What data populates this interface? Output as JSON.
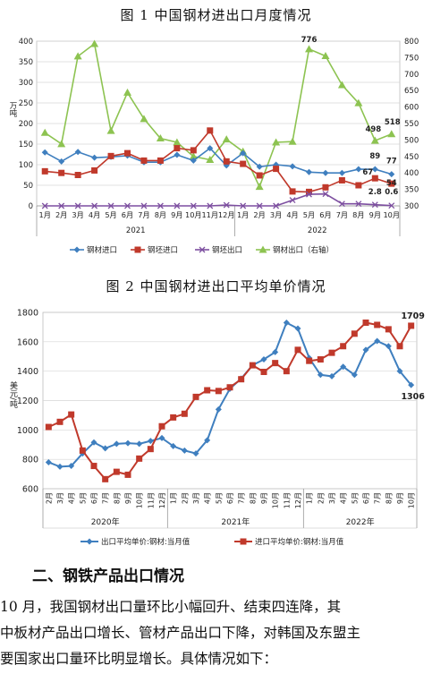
{
  "figure1": {
    "title": "图 1  中国钢材进出口月度情况",
    "y_left_unit": "万吨",
    "y_left_ticks": [
      "0",
      "50",
      "100",
      "150",
      "200",
      "250",
      "300",
      "350",
      "400"
    ],
    "y_right_ticks": [
      "300",
      "350",
      "400",
      "450",
      "500",
      "550",
      "600",
      "650",
      "700",
      "750",
      "800"
    ],
    "months": [
      "1月",
      "2月",
      "3月",
      "4月",
      "5月",
      "6月",
      "7月",
      "8月",
      "9月",
      "10月",
      "11月",
      "12月",
      "1月",
      "2月",
      "3月",
      "4月",
      "5月",
      "6月",
      "7月",
      "8月",
      "9月",
      "10月"
    ],
    "year_labels": [
      "2021",
      "2022"
    ],
    "legend": [
      "钢材进口",
      "钢坯进口",
      "钢坯出口",
      "钢材出口（右轴）"
    ],
    "annotations": {
      "steel_export_peak": "776",
      "steel_export_sep": "498",
      "steel_export_oct": "518",
      "steel_import_sep": "89",
      "steel_import_oct": "77",
      "billet_import_sep": "67",
      "billet_import_oct": "54",
      "billet_export_sep": "2.8",
      "billet_export_oct": "0.6"
    }
  },
  "figure2": {
    "title": "图 2  中国钢材进出口平均单价情况",
    "y_unit": "美元/吨",
    "y_ticks": [
      "600",
      "800",
      "1000",
      "1200",
      "1400",
      "1600",
      "1800"
    ],
    "months": [
      "2月",
      "3月",
      "4月",
      "5月",
      "6月",
      "7月",
      "8月",
      "9月",
      "10月",
      "11月",
      "12月",
      "1月",
      "2月",
      "3月",
      "4月",
      "5月",
      "6月",
      "7月",
      "8月",
      "9月",
      "10月",
      "11月",
      "12月",
      "1月",
      "2月",
      "3月",
      "4月",
      "5月",
      "6月",
      "7月",
      "8月",
      "9月",
      "10月"
    ],
    "year_labels": [
      "2020年",
      "2021年",
      "2022年"
    ],
    "legend": [
      "出口平均单价:钢材:当月值",
      "进口平均单价:钢材:当月值"
    ],
    "annotations": {
      "import_last": "1709",
      "export_last": "1306"
    }
  },
  "chart_data": [
    {
      "type": "line",
      "title": "图 1  中国钢材进出口月度情况",
      "ylabel": "万吨",
      "ylim": [
        0,
        400
      ],
      "y2lim": [
        300,
        800
      ],
      "categories": [
        "1月",
        "2月",
        "3月",
        "4月",
        "5月",
        "6月",
        "7月",
        "8月",
        "9月",
        "10月",
        "11月",
        "12月",
        "1月",
        "2月",
        "3月",
        "4月",
        "5月",
        "6月",
        "7月",
        "8月",
        "9月",
        "10月"
      ],
      "series": [
        {
          "name": "钢材进口",
          "axis": "left",
          "color": "#3f7fbf",
          "marker": "diamond",
          "values": [
            130,
            108,
            131,
            117,
            119,
            122,
            106,
            106,
            124,
            110,
            140,
            98,
            128,
            95,
            100,
            96,
            82,
            80,
            80,
            89,
            89,
            77
          ]
        },
        {
          "name": "钢坯进口",
          "axis": "left",
          "color": "#c0392b",
          "marker": "square",
          "values": [
            84,
            80,
            75,
            86,
            121,
            128,
            110,
            110,
            140,
            135,
            183,
            108,
            102,
            74,
            90,
            35,
            34,
            45,
            62,
            50,
            67,
            54
          ]
        },
        {
          "name": "钢坯出口",
          "axis": "left",
          "color": "#7d4fa0",
          "marker": "x",
          "values": [
            0,
            0,
            0,
            0,
            0,
            0,
            0,
            0,
            0,
            0,
            0,
            2,
            0,
            0,
            0,
            14,
            28,
            29,
            5,
            5,
            2.8,
            0.6
          ]
        },
        {
          "name": "钢材出口（右轴）",
          "axis": "right",
          "color": "#8dc351",
          "marker": "triangle",
          "values": [
            522,
            488,
            754,
            792,
            528,
            644,
            564,
            505,
            493,
            450,
            440,
            502,
            465,
            358,
            493,
            495,
            776,
            755,
            667,
            612,
            498,
            518
          ]
        }
      ]
    },
    {
      "type": "line",
      "title": "图 2  中国钢材进出口平均单价情况",
      "ylabel": "美元/吨",
      "ylim": [
        600,
        1800
      ],
      "categories": [
        "2月",
        "3月",
        "4月",
        "5月",
        "6月",
        "7月",
        "8月",
        "9月",
        "10月",
        "11月",
        "12月",
        "1月",
        "2月",
        "3月",
        "4月",
        "5月",
        "6月",
        "7月",
        "8月",
        "9月",
        "10月",
        "11月",
        "12月",
        "1月",
        "2月",
        "3月",
        "4月",
        "5月",
        "6月",
        "7月",
        "8月",
        "9月",
        "10月"
      ],
      "series": [
        {
          "name": "出口平均单价:钢材:当月值",
          "color": "#3f7fbf",
          "marker": "diamond",
          "values": [
            780,
            750,
            755,
            840,
            915,
            875,
            905,
            910,
            905,
            925,
            945,
            890,
            860,
            840,
            930,
            1140,
            1280,
            1350,
            1440,
            1480,
            1530,
            1730,
            1690,
            1490,
            1375,
            1365,
            1430,
            1375,
            1545,
            1605,
            1570,
            1400,
            1306
          ]
        },
        {
          "name": "进口平均单价:钢材:当月值",
          "color": "#c0392b",
          "marker": "square",
          "values": [
            1020,
            1055,
            1105,
            860,
            755,
            665,
            715,
            695,
            805,
            870,
            1025,
            1085,
            1110,
            1225,
            1270,
            1265,
            1290,
            1345,
            1440,
            1395,
            1455,
            1400,
            1545,
            1470,
            1480,
            1525,
            1570,
            1655,
            1730,
            1715,
            1685,
            1570,
            1709
          ]
        }
      ]
    }
  ],
  "section": {
    "heading": "二、钢铁产品出口情况",
    "lines": [
      "    10 月，我国钢材出口量环比小幅回升、结束四连降，其",
      "中板材产品出口增长、管材产品出口下降，对韩国及东盟主",
      "要国家出口量环比明显增长。具体情况如下："
    ]
  }
}
